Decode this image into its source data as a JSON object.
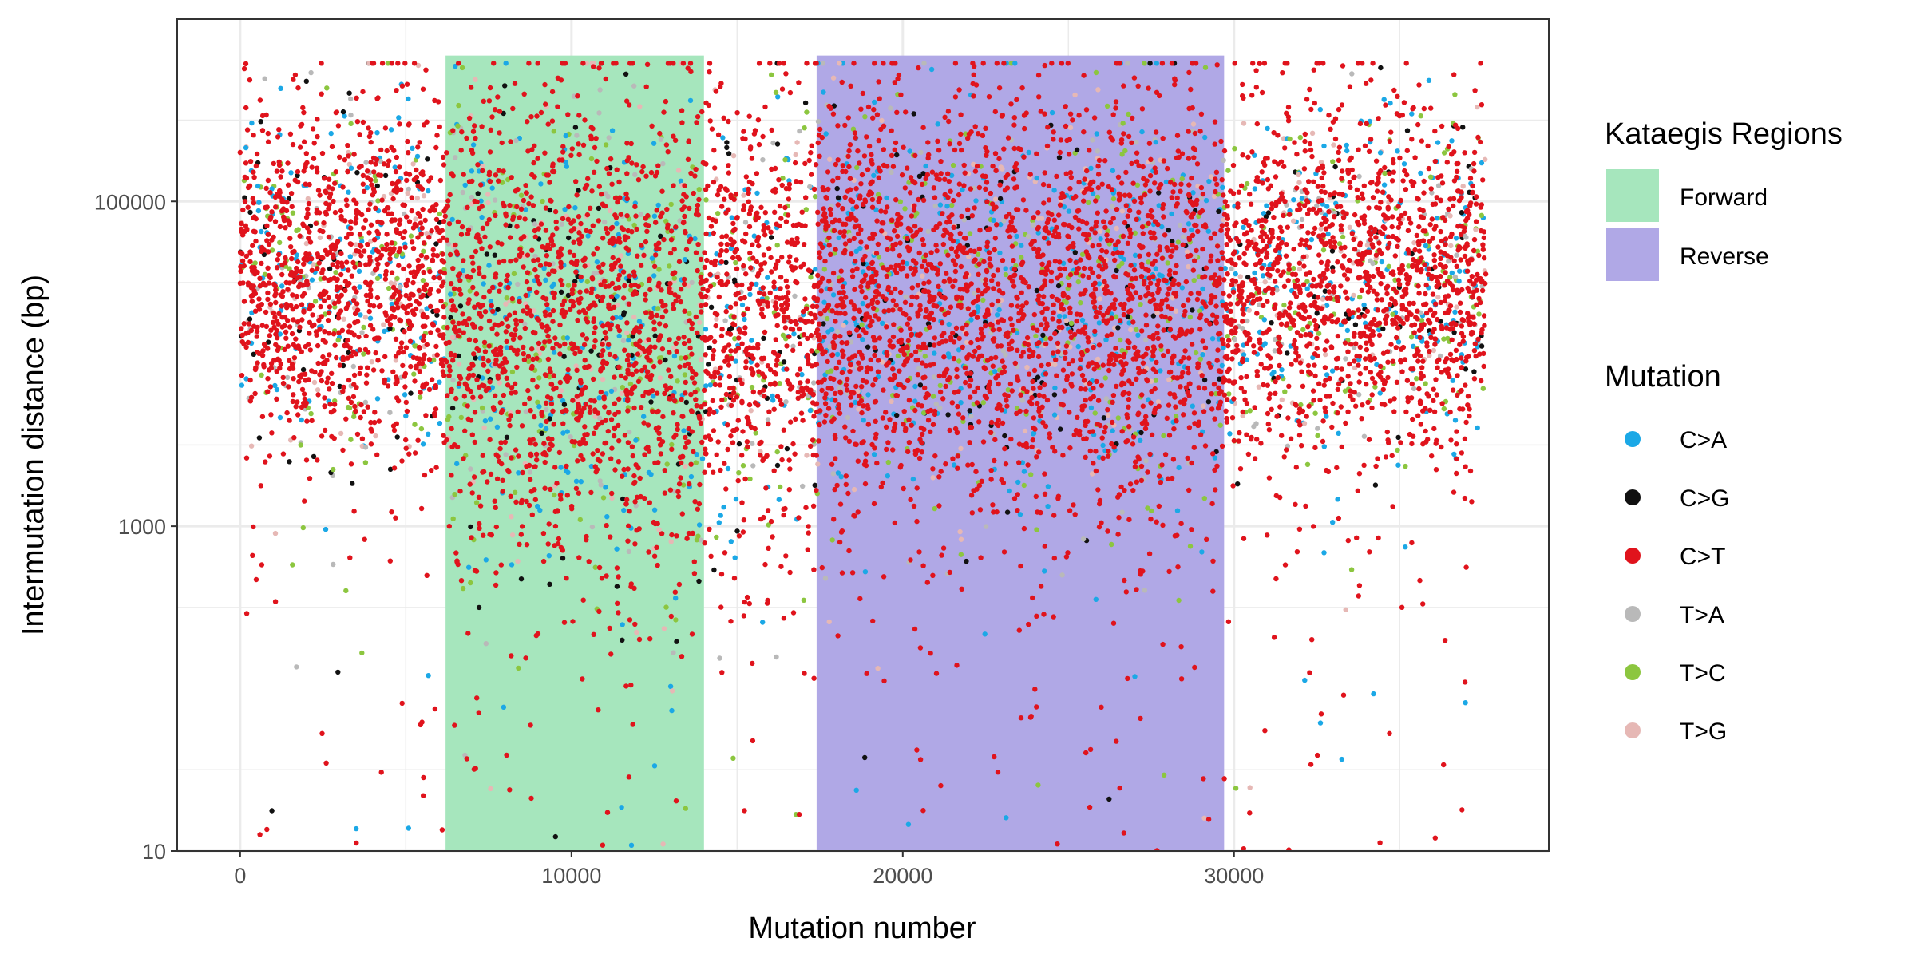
{
  "chart_data": {
    "type": "scatter",
    "title": "",
    "xlabel": "Mutation number",
    "ylabel": "Intermutation distance (bp)",
    "x_range": [
      -1900,
      39500
    ],
    "y_range": [
      1.0,
      6.122
    ],
    "y_scale": "log10",
    "x_ticks": [
      {
        "value": 0,
        "label": "0"
      },
      {
        "value": 10000,
        "label": "10000"
      },
      {
        "value": 20000,
        "label": "20000"
      },
      {
        "value": 30000,
        "label": "30000"
      }
    ],
    "y_ticks": [
      {
        "value": 10,
        "label": "10"
      },
      {
        "value": 1000,
        "label": "1000"
      },
      {
        "value": 100000,
        "label": "100000"
      }
    ],
    "grid": true,
    "regions_legend_title": "Kataegis Regions",
    "regions": [
      {
        "name": "Forward",
        "x_start": 6200,
        "x_end": 14000,
        "y_min": 10,
        "y_max": 790000,
        "color": "#a6e6bd"
      },
      {
        "name": "Reverse",
        "x_start": 17400,
        "x_end": 29700,
        "y_min": 10,
        "y_max": 790000,
        "color": "#b0a8e6"
      }
    ],
    "mutation_legend_title": "Mutation",
    "series": [
      {
        "name": "C>A",
        "color": "#1ba8e6",
        "fraction": 0.1
      },
      {
        "name": "C>G",
        "color": "#111111",
        "fraction": 0.035
      },
      {
        "name": "C>T",
        "color": "#e0131c",
        "fraction": 0.72
      },
      {
        "name": "T>A",
        "color": "#b9b9b9",
        "fraction": 0.04
      },
      {
        "name": "T>C",
        "color": "#8cc63f",
        "fraction": 0.065
      },
      {
        "name": "T>G",
        "color": "#e6b8b5",
        "fraction": 0.04
      }
    ],
    "legend_position": "right",
    "total_mutations": 37600
  }
}
